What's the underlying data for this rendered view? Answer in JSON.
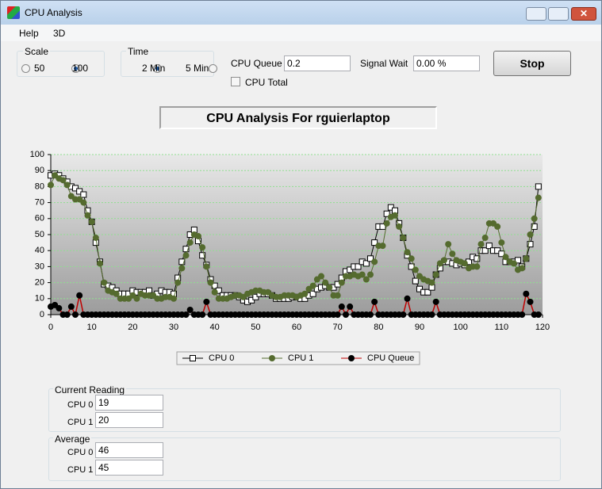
{
  "window": {
    "title": "CPU Analysis"
  },
  "menu": [
    "Help",
    "3D"
  ],
  "scale": {
    "label": "Scale",
    "options": [
      {
        "label": "50",
        "checked": false
      },
      {
        "label": "100",
        "checked": true
      }
    ]
  },
  "time": {
    "label": "Time",
    "options": [
      {
        "label": "2 Min",
        "checked": true
      },
      {
        "label": "5 Min",
        "checked": false
      }
    ]
  },
  "cpu_queue": {
    "label": "CPU Queue",
    "value": "0.2"
  },
  "signal_wait": {
    "label": "Signal Wait",
    "value": "0.00 %"
  },
  "cpu_total": {
    "label": "CPU Total",
    "checked": false
  },
  "stop_button": "Stop",
  "current_reading": {
    "label": "Current Reading",
    "rows": [
      [
        "CPU 0",
        "19"
      ],
      [
        "CPU 1",
        "20"
      ]
    ]
  },
  "average": {
    "label": "Average",
    "rows": [
      [
        "CPU 0",
        "46"
      ],
      [
        "CPU 1",
        "45"
      ]
    ]
  },
  "chart_data": {
    "type": "line",
    "title": "CPU Analysis For rguierlaptop",
    "x": [
      0,
      1,
      2,
      3,
      4,
      5,
      6,
      7,
      8,
      9,
      10,
      11,
      12,
      13,
      14,
      15,
      16,
      17,
      18,
      19,
      20,
      21,
      22,
      23,
      24,
      25,
      26,
      27,
      28,
      29,
      30,
      31,
      32,
      33,
      34,
      35,
      36,
      37,
      38,
      39,
      40,
      41,
      42,
      43,
      44,
      45,
      46,
      47,
      48,
      49,
      50,
      51,
      52,
      53,
      54,
      55,
      56,
      57,
      58,
      59,
      60,
      61,
      62,
      63,
      64,
      65,
      66,
      67,
      68,
      69,
      70,
      71,
      72,
      73,
      74,
      75,
      76,
      77,
      78,
      79,
      80,
      81,
      82,
      83,
      84,
      85,
      86,
      87,
      88,
      89,
      90,
      91,
      92,
      93,
      94,
      95,
      96,
      97,
      98,
      99,
      100,
      101,
      102,
      103,
      104,
      105,
      106,
      107,
      108,
      109,
      110,
      111,
      112,
      113,
      114,
      115,
      116,
      117,
      118,
      119
    ],
    "series": [
      {
        "name": "CPU 0",
        "color": "#000000",
        "marker": "square",
        "marker_fill": "#ffffff",
        "values": [
          87,
          88,
          87,
          85,
          83,
          80,
          79,
          77,
          75,
          65,
          58,
          45,
          33,
          19,
          18,
          17,
          15,
          13,
          13,
          13,
          15,
          14,
          14,
          14,
          15,
          12,
          13,
          15,
          14,
          14,
          13,
          23,
          33,
          41,
          50,
          53,
          46,
          37,
          31,
          22,
          18,
          15,
          12,
          12,
          12,
          12,
          11,
          9,
          8,
          9,
          11,
          13,
          13,
          13,
          12,
          10,
          10,
          10,
          10,
          11,
          11,
          10,
          10,
          12,
          13,
          16,
          17,
          18,
          17,
          17,
          19,
          23,
          27,
          28,
          30,
          30,
          33,
          32,
          35,
          45,
          55,
          55,
          63,
          67,
          65,
          57,
          48,
          37,
          30,
          21,
          16,
          14,
          14,
          17,
          25,
          29,
          33,
          33,
          32,
          31,
          32,
          31,
          33,
          36,
          35,
          40,
          40,
          43,
          40,
          40,
          38,
          33,
          33,
          33,
          34,
          30,
          35,
          44,
          55,
          80
        ]
      },
      {
        "name": "CPU 1",
        "color": "#556b2f",
        "marker": "circle",
        "marker_fill": "#556b2f",
        "values": [
          81,
          87,
          85,
          84,
          81,
          74,
          72,
          72,
          70,
          62,
          58,
          48,
          32,
          20,
          15,
          14,
          13,
          10,
          10,
          10,
          12,
          10,
          13,
          12,
          12,
          12,
          10,
          10,
          11,
          11,
          10,
          20,
          29,
          37,
          45,
          50,
          49,
          42,
          30,
          20,
          14,
          10,
          10,
          10,
          11,
          12,
          12,
          11,
          13,
          14,
          15,
          15,
          14,
          14,
          12,
          11,
          11,
          12,
          12,
          12,
          11,
          12,
          13,
          16,
          18,
          22,
          24,
          20,
          17,
          12,
          12,
          20,
          24,
          24,
          25,
          24,
          25,
          22,
          25,
          33,
          43,
          43,
          57,
          61,
          62,
          55,
          48,
          39,
          35,
          28,
          24,
          22,
          21,
          20,
          25,
          32,
          34,
          44,
          38,
          34,
          33,
          32,
          29,
          30,
          30,
          44,
          48,
          57,
          57,
          55,
          45,
          36,
          33,
          32,
          28,
          29,
          35,
          50,
          60,
          73
        ]
      },
      {
        "name": "CPU Queue",
        "color": "#c00000",
        "marker": "circle",
        "marker_fill": "#000000",
        "values": [
          5,
          6,
          4,
          0,
          0,
          5,
          0,
          12,
          0,
          0,
          0,
          0,
          0,
          0,
          0,
          0,
          0,
          0,
          0,
          0,
          0,
          0,
          0,
          0,
          0,
          0,
          0,
          0,
          0,
          0,
          0,
          0,
          0,
          0,
          3,
          0,
          0,
          0,
          8,
          0,
          0,
          0,
          0,
          0,
          0,
          0,
          0,
          0,
          0,
          0,
          0,
          0,
          0,
          0,
          0,
          0,
          0,
          0,
          0,
          0,
          0,
          0,
          0,
          0,
          0,
          0,
          0,
          0,
          0,
          0,
          0,
          5,
          0,
          5,
          0,
          0,
          0,
          0,
          0,
          8,
          0,
          0,
          0,
          0,
          0,
          0,
          0,
          10,
          0,
          0,
          0,
          0,
          0,
          0,
          8,
          0,
          0,
          0,
          0,
          0,
          0,
          0,
          0,
          0,
          0,
          0,
          0,
          0,
          0,
          0,
          0,
          0,
          0,
          0,
          0,
          0,
          13,
          8,
          0,
          0
        ]
      }
    ],
    "xlim": [
      0,
      120
    ],
    "xticks": [
      0,
      10,
      20,
      30,
      40,
      50,
      60,
      70,
      80,
      90,
      100,
      110,
      120
    ],
    "ylim": [
      0,
      100
    ],
    "yticks": [
      0,
      10,
      20,
      30,
      40,
      50,
      60,
      70,
      80,
      90,
      100
    ],
    "grid": true
  }
}
